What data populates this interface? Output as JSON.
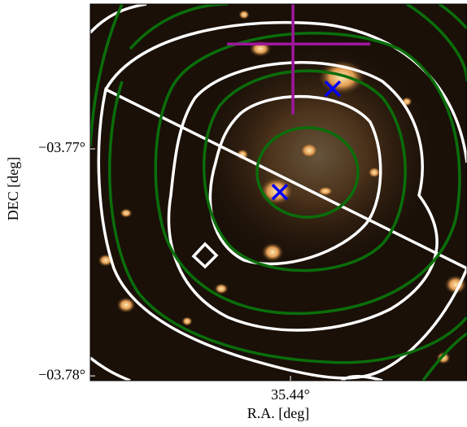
{
  "chart_data": {
    "type": "scatter",
    "xlabel": "R.A. [deg]",
    "ylabel": "DEC [deg]",
    "xlim": [
      35.44882,
      35.43222
    ],
    "ylim": [
      -3.78021,
      -3.76362
    ],
    "xticks": [
      {
        "value": 35.44,
        "label": "35.44°"
      }
    ],
    "yticks": [
      {
        "value": -3.78,
        "label": "−03.78°"
      },
      {
        "value": -3.77,
        "label": "−03.77°"
      }
    ],
    "series": [
      {
        "color": "#0000ff",
        "marker": "x",
        "x": [
          35.44047,
          35.43814
        ],
        "y": [
          -3.7719,
          -3.76735
        ]
      },
      {
        "color": "#a0179f",
        "marker": "+",
        "x": [
          35.43989
        ],
        "y": [
          -3.76538
        ],
        "xerr": [
          [
            0.0029,
            0.0034
          ]
        ],
        "yerr": [
          [
            0.0031,
            0.0031
          ]
        ]
      }
    ]
  }
}
